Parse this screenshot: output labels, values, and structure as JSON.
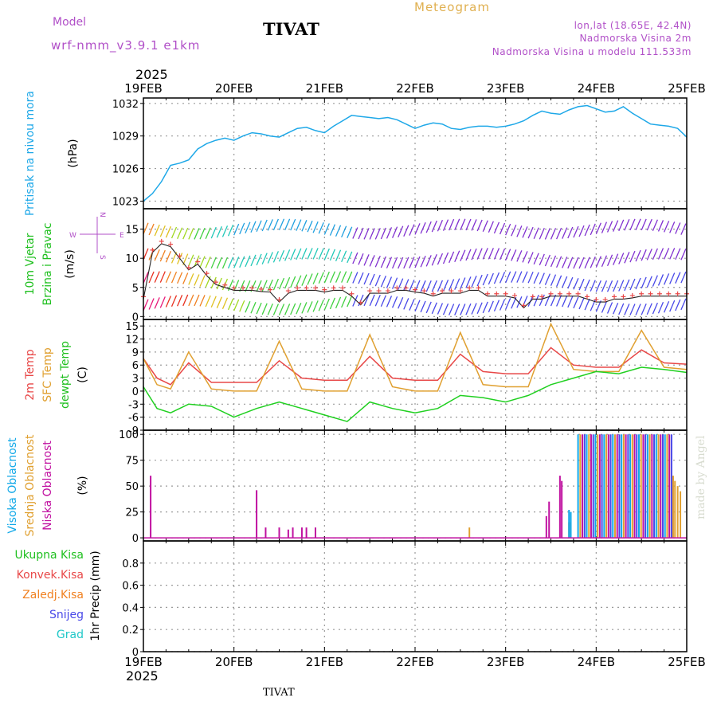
{
  "header": {
    "model_label": "Model",
    "model_version": "wrf-nmm_v3.9.1  e1km",
    "station": "TIVAT",
    "title": "Meteogram",
    "lonlat": "lon,lat (18.65E, 42.4N)",
    "elevation": "Nadmorska Visina 2m",
    "model_elevation": "Nadmorska Visina u modelu 111.533m"
  },
  "footer": {
    "station": "TIVAT",
    "watermark": "made by Angel"
  },
  "colors": {
    "pressure": "#1ea8e8",
    "temp2m": "#e84848",
    "sfc_temp": "#e0a030",
    "dewpoint": "#20d020",
    "high_cloud": "#10a8e8",
    "mid_cloud": "#e0a030",
    "low_cloud": "#c010a0",
    "grid": "#9a9a9a"
  },
  "chart_data": [
    {
      "panel": "pressure",
      "type": "line",
      "ylabel": [
        "Pritisak na nivou mora",
        "(hPa)"
      ],
      "ylabel_colors": [
        "#1ea8e8",
        "#000000"
      ],
      "ylim": [
        1022.3,
        1032.5
      ],
      "yticks": [
        1023,
        1026,
        1029,
        1032
      ],
      "x_top": {
        "year": "2025",
        "labels": [
          "19FEB",
          "20FEB",
          "21FEB",
          "22FEB",
          "23FEB",
          "24FEB",
          "25FEB"
        ]
      },
      "series": [
        {
          "x": [
            0,
            0.1,
            0.2,
            0.3,
            0.4,
            0.5,
            0.6,
            0.7,
            0.8,
            0.9,
            1.0,
            1.1,
            1.2,
            1.3,
            1.4,
            1.5,
            1.6,
            1.7,
            1.8,
            1.9,
            2.0,
            2.1,
            2.2,
            2.3,
            2.4,
            2.5,
            2.6,
            2.7,
            2.8,
            2.9,
            3.0,
            3.1,
            3.2,
            3.3,
            3.4,
            3.5,
            3.6,
            3.7,
            3.8,
            3.9,
            4.0,
            4.1,
            4.2,
            4.3,
            4.4,
            4.5,
            4.6,
            4.7,
            4.8,
            4.9,
            5.0,
            5.1,
            5.2,
            5.3,
            5.4,
            5.5,
            5.6,
            5.7,
            5.8,
            5.9,
            6.0
          ],
          "values": [
            1023.0,
            1023.7,
            1024.8,
            1026.3,
            1026.5,
            1026.8,
            1027.8,
            1028.3,
            1028.6,
            1028.8,
            1028.6,
            1029.0,
            1029.3,
            1029.2,
            1029.0,
            1028.9,
            1029.3,
            1029.7,
            1029.8,
            1029.5,
            1029.3,
            1029.9,
            1030.4,
            1030.9,
            1030.8,
            1030.7,
            1030.6,
            1030.7,
            1030.5,
            1030.1,
            1029.7,
            1030.0,
            1030.2,
            1030.1,
            1029.7,
            1029.6,
            1029.8,
            1029.9,
            1029.9,
            1029.8,
            1029.9,
            1030.1,
            1030.4,
            1030.9,
            1031.3,
            1031.1,
            1031.0,
            1031.4,
            1031.7,
            1031.8,
            1031.5,
            1031.2,
            1031.3,
            1031.7,
            1031.1,
            1030.6,
            1030.1,
            1030.0,
            1029.9,
            1029.7,
            1028.9
          ]
        }
      ]
    },
    {
      "panel": "wind",
      "type": "line",
      "ylabel": [
        "10m Vjetar",
        "Brzina i Pravac",
        "(m/s)"
      ],
      "ylabel_colors": [
        "#20c020",
        "#20c020",
        "#000000"
      ],
      "compass": [
        "N",
        "S",
        "W",
        "E",
        "-->",
        "<--"
      ],
      "ylim": [
        -0.5,
        18.5
      ],
      "yticks": [
        0,
        5,
        10,
        15
      ],
      "series": [
        {
          "name": "wind_speed",
          "x": [
            0,
            0.1,
            0.2,
            0.3,
            0.4,
            0.5,
            0.6,
            0.7,
            0.8,
            0.9,
            1.0,
            1.1,
            1.2,
            1.3,
            1.4,
            1.5,
            1.6,
            1.7,
            1.8,
            1.9,
            2.0,
            2.1,
            2.2,
            2.3,
            2.4,
            2.5,
            2.6,
            2.7,
            2.8,
            2.9,
            3.0,
            3.1,
            3.2,
            3.3,
            3.4,
            3.5,
            3.6,
            3.7,
            3.8,
            3.9,
            4.0,
            4.1,
            4.2,
            4.3,
            4.4,
            4.5,
            4.6,
            4.7,
            4.8,
            4.9,
            5.0,
            5.1,
            5.2,
            5.3,
            5.4,
            5.5,
            5.6,
            5.7,
            5.8,
            5.9,
            6.0
          ],
          "values": [
            3,
            11,
            12.5,
            12,
            10,
            8,
            9,
            7,
            5.5,
            5,
            4.5,
            4.5,
            4.5,
            4.3,
            4.2,
            2.5,
            4,
            4.5,
            4.5,
            4.5,
            4.2,
            4.5,
            4.5,
            3.5,
            2,
            4,
            4,
            4,
            4.5,
            4.5,
            4.2,
            4,
            3.5,
            4,
            4,
            4,
            4.5,
            4.5,
            3.5,
            3.5,
            3.5,
            3.2,
            1.5,
            3,
            3,
            3.5,
            3.5,
            3.5,
            3.5,
            3,
            2.5,
            2.5,
            3,
            3,
            3.2,
            3.5,
            3.5,
            3.5,
            3.5,
            3.5,
            3.5
          ]
        }
      ]
    },
    {
      "panel": "temperature",
      "type": "line",
      "ylabel": [
        "2m Temp",
        "SFC Temp",
        "dewpt Temp",
        "(C)"
      ],
      "ylabel_colors": [
        "#e84848",
        "#e0a030",
        "#20c020",
        "#000000"
      ],
      "ylim": [
        -9,
        16.5
      ],
      "yticks": [
        -9,
        -6,
        -3,
        0,
        3,
        6,
        9,
        12,
        15
      ],
      "series": [
        {
          "name": "2m Temp",
          "x": [
            0,
            0.15,
            0.3,
            0.5,
            0.75,
            1.0,
            1.25,
            1.5,
            1.75,
            2.0,
            2.25,
            2.5,
            2.75,
            3.0,
            3.25,
            3.5,
            3.75,
            4.0,
            4.25,
            4.5,
            4.75,
            5.0,
            5.25,
            5.5,
            5.75,
            6.0
          ],
          "values": [
            7.5,
            3,
            1.5,
            6.5,
            2,
            2,
            2,
            7,
            3,
            2.5,
            2.5,
            8,
            3,
            2.5,
            2.5,
            8.5,
            4.5,
            4,
            4,
            10,
            6,
            5.5,
            5.5,
            9.5,
            6.5,
            6.2
          ]
        },
        {
          "name": "SFC Temp",
          "x": [
            0,
            0.15,
            0.3,
            0.5,
            0.75,
            1.0,
            1.25,
            1.5,
            1.75,
            2.0,
            2.25,
            2.5,
            2.75,
            3.0,
            3.25,
            3.5,
            3.75,
            4.0,
            4.25,
            4.5,
            4.75,
            5.0,
            5.25,
            5.5,
            5.75,
            6.0
          ],
          "values": [
            7.5,
            1.5,
            0.5,
            9,
            0.5,
            0,
            0,
            11.5,
            0.5,
            0,
            0,
            13,
            1,
            0,
            0,
            13.5,
            1.5,
            1,
            1,
            15.5,
            5,
            4.5,
            4.5,
            14,
            5.5,
            5
          ]
        },
        {
          "name": "dewpt Temp",
          "x": [
            0,
            0.15,
            0.3,
            0.5,
            0.75,
            1.0,
            1.25,
            1.5,
            1.75,
            2.0,
            2.25,
            2.5,
            2.75,
            3.0,
            3.25,
            3.5,
            3.75,
            4.0,
            4.25,
            4.5,
            4.75,
            5.0,
            5.25,
            5.5,
            5.75,
            6.0
          ],
          "values": [
            1,
            -4,
            -5,
            -3,
            -3.5,
            -6,
            -4,
            -2.5,
            -4,
            -5.5,
            -7,
            -2.5,
            -4,
            -5,
            -4,
            -1,
            -1.5,
            -2.5,
            -1,
            1.5,
            3,
            4.5,
            4,
            5.5,
            5,
            4.3
          ]
        }
      ]
    },
    {
      "panel": "clouds",
      "type": "bar",
      "ylabel": [
        "Visoka Oblacnost",
        "Srednja Oblacnost",
        "Niska Oblacnost",
        "(%)"
      ],
      "ylabel_colors": [
        "#10a8e8",
        "#e0a030",
        "#c010a0",
        "#000000"
      ],
      "ylim": [
        -3,
        104
      ],
      "yticks": [
        0,
        25,
        50,
        75,
        100
      ],
      "series": [
        {
          "name": "Niska Oblacnost",
          "x": [
            0.08,
            1.25,
            1.35,
            1.5,
            1.6,
            1.65,
            1.75,
            1.8,
            1.9,
            4.45,
            4.48,
            4.6,
            4.62
          ],
          "values": [
            60,
            46,
            10,
            10,
            8,
            10,
            10,
            10,
            10,
            21,
            35,
            60,
            55
          ]
        },
        {
          "name": "Srednja Oblacnost",
          "x": [
            3.6,
            4.7,
            5.85,
            5.87,
            5.9,
            5.93
          ],
          "values": [
            10,
            15,
            60,
            55,
            50,
            45
          ]
        },
        {
          "name": "Visoka Oblacnost",
          "x": [
            4.7,
            4.72
          ],
          "values": [
            27,
            25
          ]
        }
      ]
    },
    {
      "panel": "precip",
      "type": "bar",
      "ylabel": [
        "1hr Precip (mm)"
      ],
      "legend": [
        "Ukupna  Kisa",
        "Konvek.Kisa",
        "Zaledj.Kisa",
        "Snijeg",
        "Grad"
      ],
      "legend_colors": [
        "#20c020",
        "#e84848",
        "#f08020",
        "#4848e8",
        "#20c8c8"
      ],
      "ylim": [
        0,
        1.0
      ],
      "yticks": [
        "0",
        "0.2",
        "0.4",
        "0.6",
        "0.8"
      ],
      "x_bottom": {
        "year": "2025",
        "labels": [
          "19FEB",
          "20FEB",
          "21FEB",
          "22FEB",
          "23FEB",
          "24FEB",
          "25FEB"
        ]
      },
      "series": []
    }
  ]
}
